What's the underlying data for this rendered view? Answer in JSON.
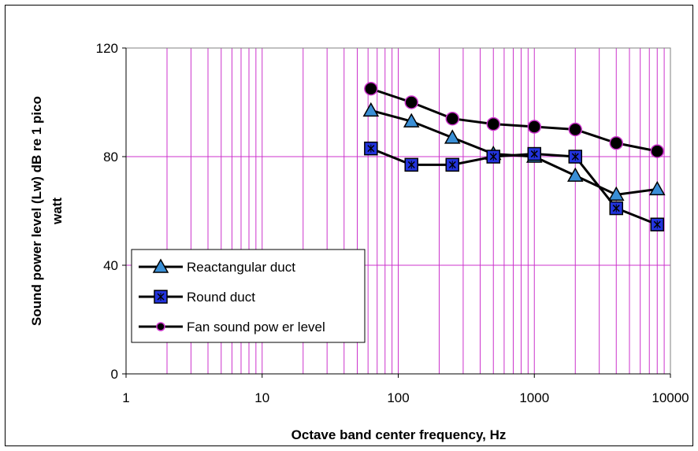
{
  "chart_data": {
    "type": "line",
    "title": "",
    "xlabel": "Octave band center frequency, Hz",
    "ylabel_lines": [
      "Sound power level (Lw) dB re 1 pico",
      "watt"
    ],
    "x_scale": "log",
    "xlim": [
      1,
      10000
    ],
    "ylim": [
      0,
      120
    ],
    "x_ticks": [
      1,
      10,
      100,
      1000,
      10000
    ],
    "x_tick_labels": [
      "1",
      "10",
      "100",
      "1000",
      "10000"
    ],
    "y_ticks": [
      0,
      40,
      80,
      120
    ],
    "y_tick_labels": [
      "0",
      "40",
      "80",
      "120"
    ],
    "grid": true,
    "grid_color": "#cc33cc",
    "legend_position": "bottom-left",
    "x": [
      63,
      125,
      250,
      500,
      1000,
      2000,
      4000,
      8000
    ],
    "series": [
      {
        "name": "Reactangular duct",
        "marker": "triangle",
        "marker_color": "#3a8fd6",
        "values": [
          97,
          93,
          87,
          81,
          80,
          73,
          66,
          68
        ]
      },
      {
        "name": "Round duct",
        "marker": "square-x",
        "marker_color": "#2233dd",
        "values": [
          83,
          77,
          77,
          80,
          81,
          80,
          61,
          55
        ]
      },
      {
        "name": "Fan sound pow er level",
        "marker": "circle",
        "marker_color": "#000000",
        "marker_edge": "#cc33cc",
        "values": [
          105,
          100,
          94,
          92,
          91,
          90,
          85,
          82
        ]
      }
    ]
  }
}
